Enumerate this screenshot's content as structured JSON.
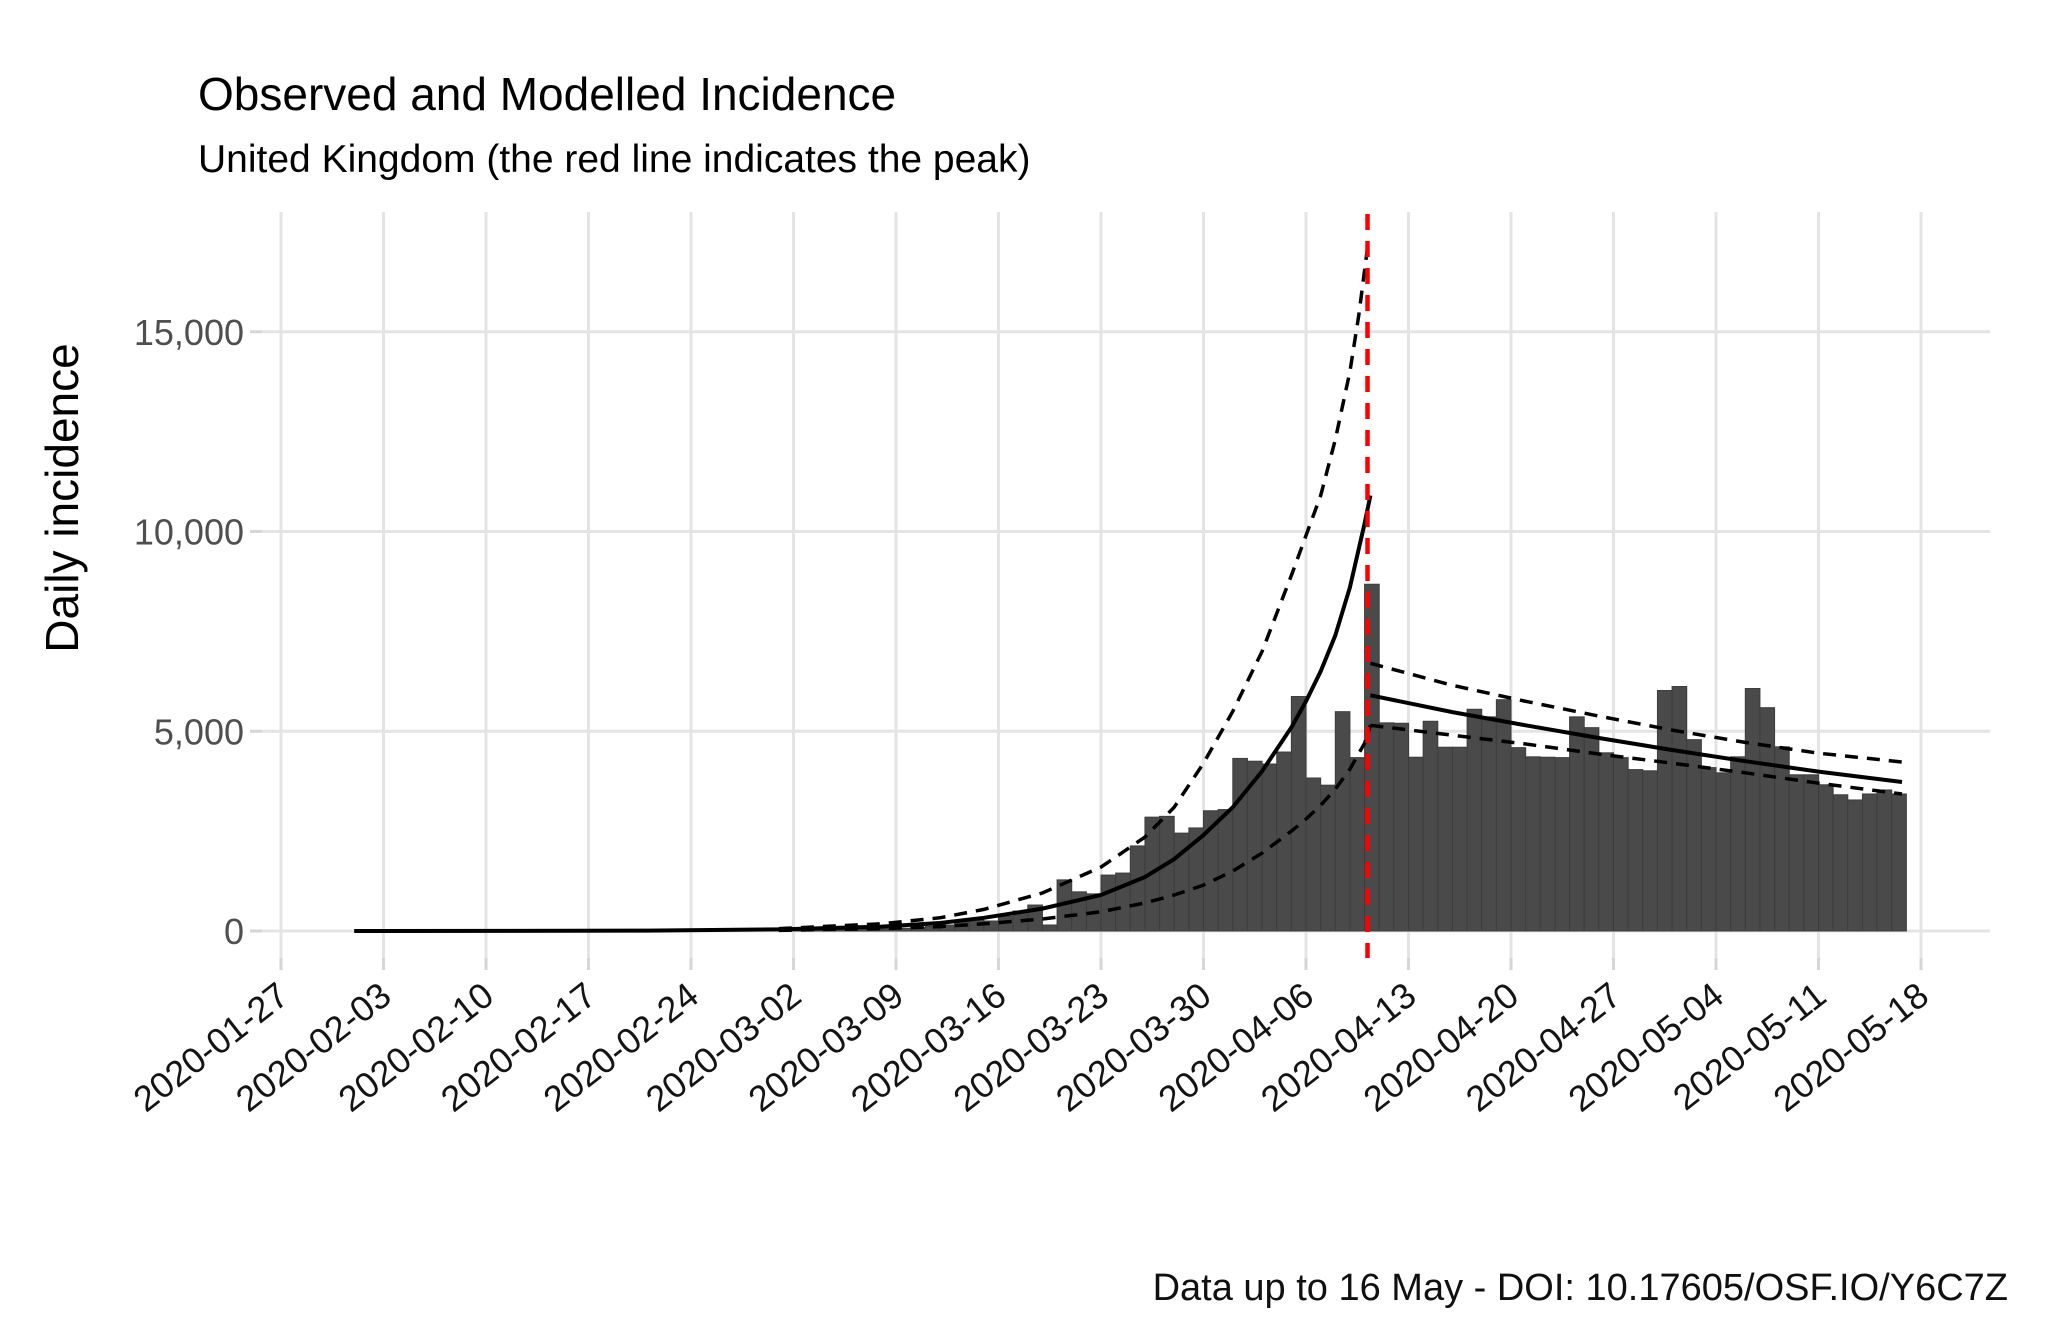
{
  "chart_data": {
    "type": "bar",
    "title": "Observed and Modelled Incidence",
    "subtitle": "United Kingdom (the red line indicates the peak)",
    "ylabel": "Daily incidence",
    "caption": "Data up to 16 May - DOI: 10.17605/OSF.IO/Y6C7Z",
    "legend_position": "none",
    "grid": "major-only",
    "x_axis": {
      "start_date": "2020-01-27",
      "tick_interval_days": 7,
      "tick_labels": [
        "2020-01-27",
        "2020-02-03",
        "2020-02-10",
        "2020-02-17",
        "2020-02-24",
        "2020-03-02",
        "2020-03-09",
        "2020-03-16",
        "2020-03-23",
        "2020-03-30",
        "2020-04-06",
        "2020-04-13",
        "2020-04-20",
        "2020-04-27",
        "2020-05-04",
        "2020-05-11",
        "2020-05-18"
      ]
    },
    "y_axis": {
      "tick_values": [
        0,
        5000,
        10000,
        15000
      ],
      "tick_labels": [
        "0",
        "5,000",
        "10,000",
        "15,000"
      ],
      "ylim": [
        0,
        18000
      ]
    },
    "peak_line": {
      "date": "2020-04-10",
      "day_offset": 74.2,
      "color": "#fe0000",
      "style": "dashed"
    },
    "bars": {
      "description": "Observed daily incidence, one bar per day",
      "start_date": "2020-03-01",
      "start_day_offset": 34,
      "values": [
        15,
        20,
        25,
        30,
        40,
        50,
        60,
        60,
        70,
        90,
        120,
        150,
        230,
        320,
        250,
        370,
        500,
        650,
        150,
        1280,
        980,
        930,
        1400,
        1450,
        2130,
        2850,
        2870,
        2450,
        2580,
        3010,
        3040,
        4320,
        4250,
        4180,
        4480,
        5870,
        3830,
        3650,
        5490,
        4340,
        8680,
        5210,
        5200,
        4350,
        5250,
        4600,
        4600,
        5550,
        5360,
        5790,
        4590,
        4360,
        4350,
        4340,
        5360,
        5090,
        4460,
        4340,
        4040,
        4010,
        6020,
        6120,
        4790,
        4090,
        3960,
        4360,
        6070,
        5590,
        4610,
        3910,
        3910,
        3660,
        3410,
        3280,
        3430,
        3530,
        3430
      ]
    },
    "model_lines": {
      "description": "Fitted incidence (solid) with dashed confidence bounds; [day offset from 2020-01-27, value]",
      "growth_solid": [
        [
          5,
          0
        ],
        [
          15,
          3
        ],
        [
          25,
          10
        ],
        [
          34,
          40
        ],
        [
          41,
          110
        ],
        [
          45,
          200
        ],
        [
          48,
          330
        ],
        [
          52,
          560
        ],
        [
          56,
          900
        ],
        [
          59,
          1350
        ],
        [
          61,
          1800
        ],
        [
          63,
          2400
        ],
        [
          65,
          3100
        ],
        [
          67,
          4000
        ],
        [
          69,
          5100
        ],
        [
          70,
          5750
        ],
        [
          71,
          6500
        ],
        [
          72,
          7400
        ],
        [
          73,
          8600
        ],
        [
          74,
          10200
        ],
        [
          74.4,
          10900
        ]
      ],
      "growth_upper": [
        [
          34,
          60
        ],
        [
          41,
          180
        ],
        [
          45,
          330
        ],
        [
          48,
          540
        ],
        [
          52,
          950
        ],
        [
          56,
          1600
        ],
        [
          59,
          2350
        ],
        [
          61,
          3100
        ],
        [
          63,
          4200
        ],
        [
          65,
          5500
        ],
        [
          67,
          7000
        ],
        [
          69,
          8900
        ],
        [
          70,
          9900
        ],
        [
          71,
          10900
        ],
        [
          72,
          12300
        ],
        [
          73,
          14000
        ],
        [
          73.6,
          15400
        ],
        [
          74.2,
          17100
        ]
      ],
      "growth_lower": [
        [
          34,
          15
        ],
        [
          41,
          60
        ],
        [
          45,
          110
        ],
        [
          48,
          180
        ],
        [
          52,
          300
        ],
        [
          56,
          480
        ],
        [
          59,
          700
        ],
        [
          61,
          900
        ],
        [
          63,
          1150
        ],
        [
          65,
          1500
        ],
        [
          67,
          1950
        ],
        [
          69,
          2500
        ],
        [
          70,
          2800
        ],
        [
          71,
          3150
        ],
        [
          72,
          3550
        ],
        [
          73,
          4050
        ],
        [
          74,
          4700
        ],
        [
          74.4,
          5150
        ]
      ],
      "decline_solid": [
        [
          74.4,
          5900
        ],
        [
          80,
          5480
        ],
        [
          85,
          5150
        ],
        [
          90,
          4830
        ],
        [
          95,
          4530
        ],
        [
          100,
          4250
        ],
        [
          105,
          3990
        ],
        [
          110.7,
          3730
        ]
      ],
      "decline_upper": [
        [
          74.4,
          6700
        ],
        [
          80,
          6150
        ],
        [
          85,
          5750
        ],
        [
          90,
          5380
        ],
        [
          95,
          5030
        ],
        [
          100,
          4720
        ],
        [
          105,
          4450
        ],
        [
          110.7,
          4230
        ]
      ],
      "decline_lower": [
        [
          74.4,
          5150
        ],
        [
          80,
          4900
        ],
        [
          85,
          4680
        ],
        [
          90,
          4430
        ],
        [
          95,
          4200
        ],
        [
          100,
          3960
        ],
        [
          105,
          3700
        ],
        [
          110.7,
          3430
        ]
      ]
    },
    "colors": {
      "bar_fill": "#4a4a4a",
      "bar_stroke": "#3d3d3d",
      "model_line": "#000000",
      "peak_line": "#fe0000",
      "gridline": "#e4e4e4",
      "tick_mark": "#d6d6d6",
      "axis_text_y": "#4f4f4f",
      "axis_text_x": "#141414",
      "background": "#ffffff"
    }
  }
}
